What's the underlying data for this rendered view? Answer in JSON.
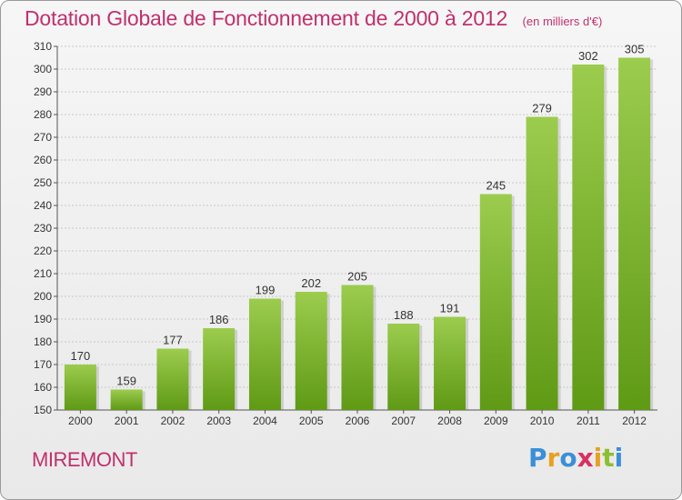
{
  "chart_data": {
    "type": "bar",
    "title": "Dotation Globale de Fonctionnement de 2000 à 2012",
    "unit": "(en milliers d'€)",
    "categories": [
      "2000",
      "2001",
      "2002",
      "2003",
      "2004",
      "2005",
      "2006",
      "2007",
      "2008",
      "2009",
      "2010",
      "2011",
      "2012"
    ],
    "values": [
      170,
      159,
      177,
      186,
      199,
      202,
      205,
      188,
      191,
      245,
      279,
      302,
      305
    ],
    "ylim": [
      150,
      310
    ],
    "yticks": [
      150,
      160,
      170,
      180,
      190,
      200,
      210,
      220,
      230,
      240,
      250,
      260,
      270,
      280,
      290,
      300,
      310
    ],
    "grid": true,
    "bar_color_top": "#9ccc4e",
    "bar_color_bottom": "#5f9a15"
  },
  "commune": "MIREMONT",
  "logo": {
    "text": "Proxiti",
    "letter_colors": [
      "#3a8fd8",
      "#e8a020",
      "#3a8fd8",
      "#d83060",
      "#e8a020",
      "#8cbf30",
      "#3a8fd8"
    ]
  }
}
